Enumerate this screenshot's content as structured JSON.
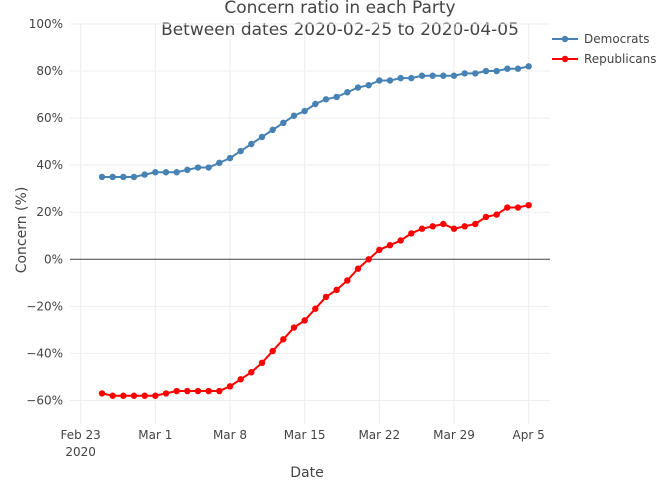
{
  "chart_data": {
    "type": "line",
    "title": "Concern ratio in each Party",
    "subtitle": "Between dates 2020-02-25 to 2020-04-05",
    "xlabel": "Date",
    "ylabel": "Concern (%)",
    "x_start": "2020-02-25",
    "x_end": "2020-04-05",
    "xlim": [
      "2020-02-22",
      "2020-04-07"
    ],
    "ylim": [
      -70,
      100
    ],
    "x_ticks": [
      {
        "date": "2020-02-23",
        "label": "Feb 23",
        "sublabel": "2020"
      },
      {
        "date": "2020-03-01",
        "label": "Mar 1",
        "sublabel": ""
      },
      {
        "date": "2020-03-08",
        "label": "Mar 8",
        "sublabel": ""
      },
      {
        "date": "2020-03-15",
        "label": "Mar 15",
        "sublabel": ""
      },
      {
        "date": "2020-03-22",
        "label": "Mar 22",
        "sublabel": ""
      },
      {
        "date": "2020-03-29",
        "label": "Mar 29",
        "sublabel": ""
      },
      {
        "date": "2020-04-05",
        "label": "Apr 5",
        "sublabel": ""
      }
    ],
    "y_ticks": [
      {
        "value": 100,
        "label": "100%"
      },
      {
        "value": 80,
        "label": "80%"
      },
      {
        "value": 60,
        "label": "60%"
      },
      {
        "value": 40,
        "label": "40%"
      },
      {
        "value": 20,
        "label": "20%"
      },
      {
        "value": 0,
        "label": "0%"
      },
      {
        "value": -20,
        "label": "−20%"
      },
      {
        "value": -40,
        "label": "−40%"
      },
      {
        "value": -60,
        "label": "−60%"
      }
    ],
    "grid": true,
    "legend_position": "top-right",
    "series": [
      {
        "name": "Democrats",
        "color": "#4682b4",
        "values": [
          35,
          35,
          35,
          35,
          36,
          37,
          37,
          37,
          38,
          39,
          39,
          41,
          43,
          46,
          49,
          52,
          55,
          58,
          61,
          63,
          66,
          68,
          69,
          71,
          73,
          74,
          76,
          76,
          77,
          77,
          78,
          78,
          78,
          78,
          79,
          79,
          80,
          80,
          81,
          81,
          82
        ]
      },
      {
        "name": "Republicans",
        "color": "#ff0000",
        "values": [
          -57,
          -58,
          -58,
          -58,
          -58,
          -58,
          -57,
          -56,
          -56,
          -56,
          -56,
          -56,
          -54,
          -51,
          -48,
          -44,
          -39,
          -34,
          -29,
          -26,
          -21,
          -16,
          -13,
          -9,
          -4,
          0,
          4,
          6,
          8,
          11,
          13,
          14,
          15,
          13,
          14,
          15,
          18,
          19,
          22,
          22,
          23
        ]
      }
    ]
  }
}
